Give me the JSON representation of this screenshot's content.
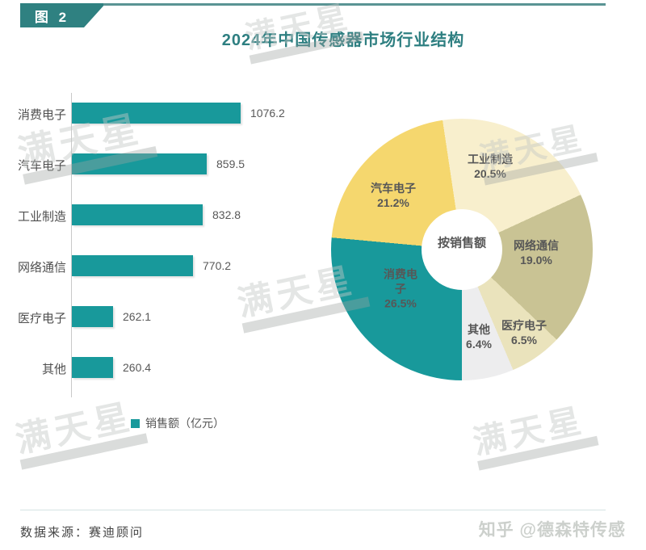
{
  "figure_badge": "图 2",
  "title": "2024年中国传感器市场行业结构",
  "colors": {
    "teal": "#18999b",
    "header_teal": "#2f8181",
    "title_teal": "#2e7f81",
    "yellow": "#f5d76e",
    "cream": "#f8efcd",
    "khaki": "#c9c394",
    "pale_khaki": "#eae3bc",
    "light_gray": "#ededee"
  },
  "chart_data": [
    {
      "type": "bar",
      "orientation": "horizontal",
      "categories": [
        "消费电子",
        "汽车电子",
        "工业制造",
        "网络通信",
        "医疗电子",
        "其他"
      ],
      "values": [
        1076.2,
        859.5,
        832.8,
        770.2,
        262.1,
        260.4
      ],
      "value_labels": [
        "1076.2",
        "859.5",
        "832.8",
        "770.2",
        "262.1",
        "260.4"
      ],
      "bar_color": "#18999b",
      "legend": "销售额（亿元）",
      "xlim": [
        0,
        1100
      ],
      "grid": false
    },
    {
      "type": "pie",
      "center_label": "按销售额",
      "start_angle_deg": -8.5,
      "clockwise": true,
      "slices": [
        {
          "label": "工业制造",
          "pct": 20.5,
          "pct_label": "20.5%",
          "color": "#f8efcd"
        },
        {
          "label": "网络通信",
          "pct": 19.0,
          "pct_label": "19.0%",
          "color": "#c9c394"
        },
        {
          "label": "医疗电子",
          "pct": 6.5,
          "pct_label": "6.5%",
          "color": "#eae3bc"
        },
        {
          "label": "其他",
          "pct": 6.4,
          "pct_label": "6.4%",
          "color": "#ededee"
        },
        {
          "label": "消费电子",
          "pct": 26.5,
          "pct_label": "26.5%",
          "color": "#18999b"
        },
        {
          "label": "汽车电子",
          "pct": 21.2,
          "pct_label": "21.2%",
          "color": "#f5d76e"
        }
      ]
    }
  ],
  "legend": {
    "label": "销售额（亿元）"
  },
  "watermark": {
    "brand": "满天星",
    "zhihu": "知乎 @德森特传感"
  },
  "footer": {
    "source": "数据来源：赛迪顾问"
  }
}
